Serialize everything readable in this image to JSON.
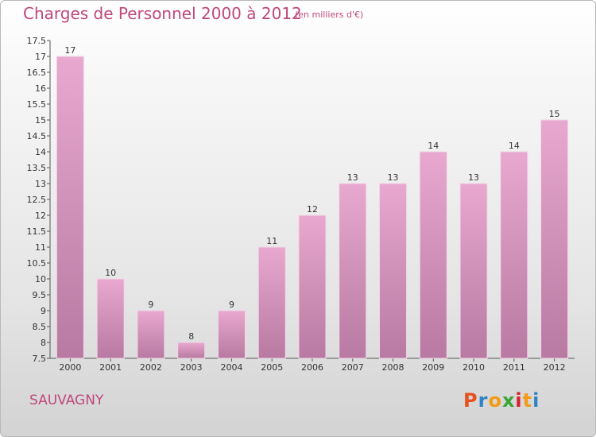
{
  "header": {
    "title": "Charges de Personnel 2000 à 2012",
    "subtitle": "(en milliers d'€)"
  },
  "footer": {
    "commune": "SAUVAGNY",
    "logo": {
      "text": "Proxiti",
      "letter_colors": [
        "#e8501e",
        "#2f83c5",
        "#f39a16",
        "#3aa635",
        "#d61f2f",
        "#f39a16",
        "#2f83c5"
      ]
    }
  },
  "colors": {
    "accent": "#c0477d",
    "bar_top": "#e8a8cf",
    "bar_bottom": "#b87aa2",
    "bar_edge": "#f0d6e6"
  },
  "chart_data": {
    "type": "bar",
    "title": "Charges de Personnel 2000 à 2012",
    "subtitle": "(en milliers d'€)",
    "categories": [
      "2000",
      "2001",
      "2002",
      "2003",
      "2004",
      "2005",
      "2006",
      "2007",
      "2008",
      "2009",
      "2010",
      "2011",
      "2012"
    ],
    "values": [
      17,
      10,
      9,
      8,
      9,
      11,
      12,
      13,
      13,
      14,
      13,
      14,
      15
    ],
    "ylim": [
      7.5,
      17.5
    ],
    "yticks": [
      "7.5",
      "8",
      "8.5",
      "9",
      "9.5",
      "10",
      "10.5",
      "11",
      "11.5",
      "12",
      "12.5",
      "13",
      "13.5",
      "14",
      "14.5",
      "15",
      "15.5",
      "16",
      "16.5",
      "17",
      "17.5"
    ],
    "grid": false,
    "xlabel": "",
    "ylabel": ""
  }
}
